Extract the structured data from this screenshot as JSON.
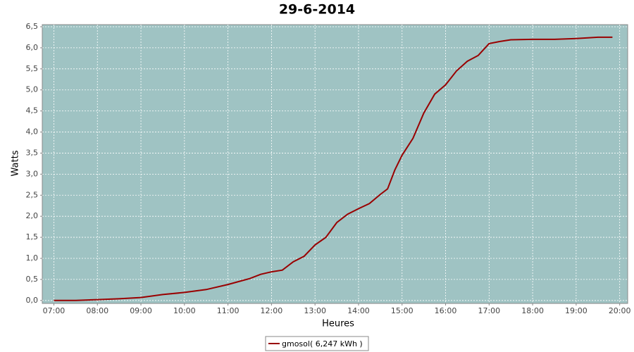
{
  "chart_data": {
    "type": "line",
    "title": "29-6-2014",
    "x_label": "Heures",
    "y_label": "Watts",
    "x": [
      "07:00",
      "07:30",
      "08:00",
      "08:30",
      "09:00",
      "09:30",
      "10:00",
      "10:30",
      "11:00",
      "11:15",
      "11:30",
      "11:45",
      "12:00",
      "12:15",
      "12:30",
      "12:45",
      "13:00",
      "13:15",
      "13:30",
      "13:45",
      "14:00",
      "14:15",
      "14:30",
      "14:40",
      "14:50",
      "15:00",
      "15:15",
      "15:30",
      "15:45",
      "16:00",
      "16:15",
      "16:30",
      "16:45",
      "17:00",
      "17:15",
      "17:30",
      "18:00",
      "18:30",
      "19:00",
      "19:30",
      "19:50"
    ],
    "series": [
      {
        "name": "gmosol( 6,247 kWh )",
        "color": "#990000",
        "values": [
          0.0,
          0.0,
          0.02,
          0.04,
          0.07,
          0.14,
          0.19,
          0.26,
          0.38,
          0.45,
          0.52,
          0.62,
          0.68,
          0.72,
          0.92,
          1.05,
          1.32,
          1.5,
          1.85,
          2.05,
          2.18,
          2.3,
          2.52,
          2.65,
          3.1,
          3.45,
          3.85,
          4.45,
          4.9,
          5.12,
          5.45,
          5.68,
          5.82,
          6.1,
          6.15,
          6.19,
          6.2,
          6.2,
          6.22,
          6.25,
          6.25
        ]
      }
    ],
    "xlim": [
      "06:44",
      "20:11"
    ],
    "xticks": [
      "07:00",
      "08:00",
      "09:00",
      "10:00",
      "11:00",
      "12:00",
      "13:00",
      "14:00",
      "15:00",
      "16:00",
      "17:00",
      "18:00",
      "19:00",
      "20:00"
    ],
    "ylim": [
      -0.07,
      6.55
    ],
    "yticks": [
      {
        "value": 0,
        "label": "0,0"
      },
      {
        "value": 0.5,
        "label": "0,5"
      },
      {
        "value": 1,
        "label": "1,0"
      },
      {
        "value": 1.5,
        "label": "1,5"
      },
      {
        "value": 2,
        "label": "2,0"
      },
      {
        "value": 2.5,
        "label": "2,5"
      },
      {
        "value": 3,
        "label": "3,0"
      },
      {
        "value": 3.5,
        "label": "3,5"
      },
      {
        "value": 4,
        "label": "4,0"
      },
      {
        "value": 4.5,
        "label": "4,5"
      },
      {
        "value": 5,
        "label": "5,0"
      },
      {
        "value": 5.5,
        "label": "5,5"
      },
      {
        "value": 6,
        "label": "6,0"
      },
      {
        "value": 6.5,
        "label": "6,5"
      }
    ],
    "grid": true,
    "plot_background": "#9fc3c3",
    "legend_position": "bottom"
  }
}
